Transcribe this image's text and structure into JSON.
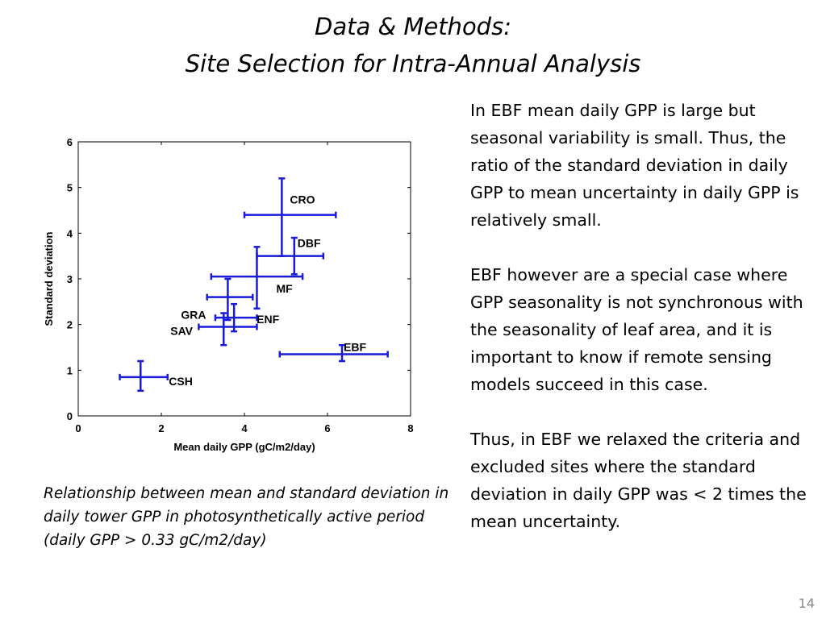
{
  "slide": {
    "title_line1": "Data & Methods:",
    "title_line2": "Site Selection for Intra-Annual Analysis",
    "caption": "Relationship between mean and standard deviation in daily tower GPP in photosynthetically active period (daily GPP > 0.33 gC/m2/day)",
    "paragraphs": [
      "In EBF mean daily GPP is large but seasonal variability is small. Thus, the ratio of the standard deviation in daily GPP to mean uncertainty in daily GPP is relatively small.",
      "EBF however are a special case where GPP seasonality is not synchronous with the seasonality of leaf area, and it is important to know if remote sensing models succeed in this case.",
      "Thus, in EBF we relaxed the criteria and excluded sites where the standard deviation in daily GPP was < 2 times the mean uncertainty."
    ],
    "page_number": "14"
  },
  "chart_data": {
    "type": "scatter",
    "xlabel": "Mean daily GPP (gC/m2/day)",
    "ylabel": "Standard deviation",
    "xlim": [
      0,
      8
    ],
    "ylim": [
      0,
      6
    ],
    "xticks": [
      0,
      2,
      4,
      6,
      8
    ],
    "yticks": [
      0,
      1,
      2,
      3,
      4,
      5,
      6
    ],
    "grid": false,
    "series_color": "#1a1adb",
    "points": [
      {
        "label": "CRO",
        "x": 4.9,
        "y": 4.4,
        "xerr": [
          4.0,
          6.2
        ],
        "yerr": [
          3.5,
          5.2
        ]
      },
      {
        "label": "DBF",
        "x": 5.2,
        "y": 3.5,
        "xerr": [
          4.3,
          5.9
        ],
        "yerr": [
          3.1,
          3.9
        ]
      },
      {
        "label": "MF",
        "x": 4.3,
        "y": 3.05,
        "xerr": [
          3.2,
          5.4
        ],
        "yerr": [
          2.35,
          3.7
        ]
      },
      {
        "label": "GRA",
        "x": 3.6,
        "y": 2.6,
        "xerr": [
          3.1,
          4.2
        ],
        "yerr": [
          2.1,
          3.0
        ]
      },
      {
        "label": "ENF",
        "x": 3.75,
        "y": 2.15,
        "xerr": [
          3.3,
          4.3
        ],
        "yerr": [
          1.85,
          2.45
        ]
      },
      {
        "label": "SAV",
        "x": 3.5,
        "y": 1.95,
        "xerr": [
          2.9,
          4.3
        ],
        "yerr": [
          1.55,
          2.25
        ]
      },
      {
        "label": "EBF",
        "x": 6.35,
        "y": 1.35,
        "xerr": [
          4.85,
          7.45
        ],
        "yerr": [
          1.2,
          1.55
        ]
      },
      {
        "label": "CSH",
        "x": 1.5,
        "y": 0.85,
        "xerr": [
          1.0,
          2.15
        ],
        "yerr": [
          0.55,
          1.2
        ]
      }
    ]
  }
}
